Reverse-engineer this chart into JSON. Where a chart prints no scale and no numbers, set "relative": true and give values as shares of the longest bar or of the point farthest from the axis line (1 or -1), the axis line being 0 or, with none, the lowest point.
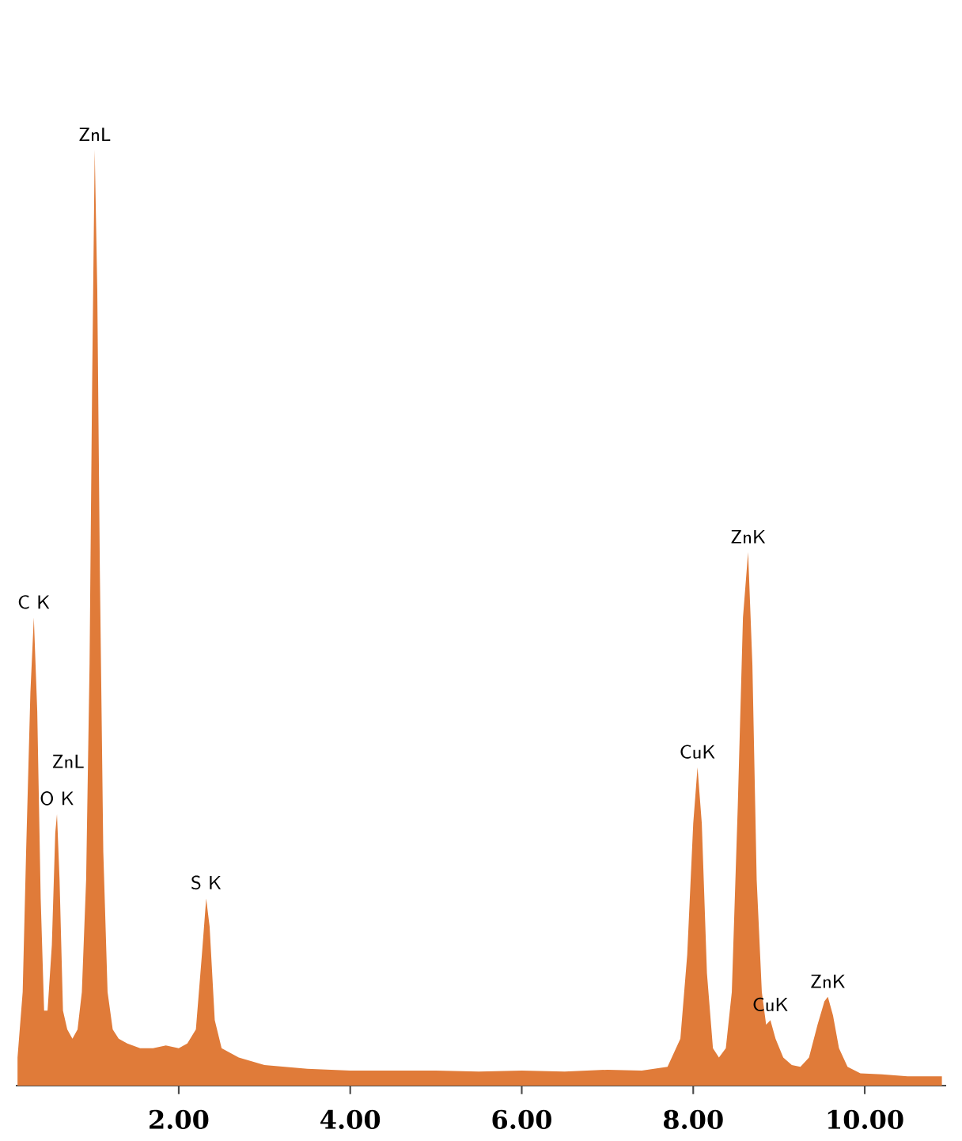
{
  "chart_data": {
    "type": "area",
    "relative": true,
    "color": "#e07b39",
    "x": [
      0.12,
      0.18,
      0.22,
      0.27,
      0.31,
      0.35,
      0.39,
      0.43,
      0.47,
      0.52,
      0.56,
      0.58,
      0.61,
      0.65,
      0.7,
      0.76,
      0.82,
      0.87,
      0.92,
      0.96,
      0.99,
      1.02,
      1.05,
      1.08,
      1.12,
      1.17,
      1.23,
      1.3,
      1.4,
      1.55,
      1.7,
      1.85,
      2.0,
      2.1,
      2.2,
      2.27,
      2.32,
      2.36,
      2.42,
      2.5,
      2.7,
      3.0,
      3.5,
      4.0,
      4.5,
      5.0,
      5.5,
      6.0,
      6.5,
      7.0,
      7.4,
      7.7,
      7.85,
      7.93,
      8.0,
      8.05,
      8.1,
      8.16,
      8.23,
      8.3,
      8.38,
      8.45,
      8.52,
      8.58,
      8.64,
      8.69,
      8.74,
      8.8,
      8.85,
      8.9,
      8.96,
      9.05,
      9.15,
      9.25,
      9.35,
      9.45,
      9.53,
      9.57,
      9.63,
      9.7,
      9.8,
      9.95,
      10.2,
      10.5,
      10.9
    ],
    "values": [
      0.03,
      0.1,
      0.25,
      0.42,
      0.5,
      0.4,
      0.2,
      0.08,
      0.08,
      0.15,
      0.27,
      0.29,
      0.22,
      0.08,
      0.06,
      0.05,
      0.06,
      0.1,
      0.22,
      0.45,
      0.75,
      1.0,
      0.85,
      0.55,
      0.25,
      0.1,
      0.06,
      0.05,
      0.045,
      0.04,
      0.04,
      0.043,
      0.04,
      0.045,
      0.06,
      0.14,
      0.2,
      0.17,
      0.07,
      0.04,
      0.03,
      0.022,
      0.018,
      0.016,
      0.016,
      0.016,
      0.015,
      0.016,
      0.015,
      0.017,
      0.016,
      0.02,
      0.05,
      0.14,
      0.28,
      0.34,
      0.28,
      0.12,
      0.04,
      0.03,
      0.04,
      0.1,
      0.3,
      0.5,
      0.57,
      0.45,
      0.22,
      0.1,
      0.065,
      0.07,
      0.05,
      0.03,
      0.022,
      0.02,
      0.03,
      0.065,
      0.09,
      0.095,
      0.075,
      0.04,
      0.02,
      0.013,
      0.012,
      0.01,
      0.01
    ],
    "xlim": [
      0.1,
      10.95
    ],
    "xticks": [
      {
        "value": 2,
        "label": "2.00"
      },
      {
        "value": 4,
        "label": "4.00"
      },
      {
        "value": 6,
        "label": "6.00"
      },
      {
        "value": 8,
        "label": "8.00"
      },
      {
        "value": 10,
        "label": "10.00"
      }
    ],
    "annotations": [
      {
        "text": "ZnL",
        "x": 1.02,
        "y": 1.0
      },
      {
        "text": "C K",
        "x": 0.31,
        "y": 0.5
      },
      {
        "text": "O K",
        "x": 0.58,
        "y": 0.29
      },
      {
        "text": "ZnL",
        "x": 0.93,
        "y": 0.33
      },
      {
        "text": "S K",
        "x": 2.32,
        "y": 0.2
      },
      {
        "text": "CuK",
        "x": 8.05,
        "y": 0.34
      },
      {
        "text": "ZnK",
        "x": 8.64,
        "y": 0.57
      },
      {
        "text": "CuK",
        "x": 8.9,
        "y": 0.07
      },
      {
        "text": "ZnK",
        "x": 9.57,
        "y": 0.095
      }
    ]
  }
}
